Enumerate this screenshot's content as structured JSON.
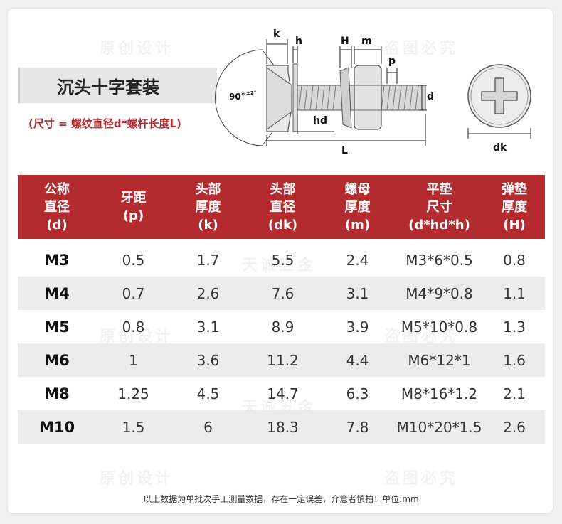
{
  "title": "沉头十字套装",
  "subtitle": "(尺寸 = 螺纹直径d*螺杆长度L)",
  "diagram_labels": {
    "k": "k",
    "h": "h",
    "H": "H",
    "m": "m",
    "p": "p",
    "d": "d",
    "hd": "hd",
    "L": "L",
    "angle": "90°",
    "angle_tol": "±2°",
    "dk": "dk"
  },
  "watermarks": [
    "原创设计",
    "盗图必究",
    "天诚五金"
  ],
  "table": {
    "headers": [
      [
        "公称",
        "直径",
        "(d)"
      ],
      [
        "牙距",
        "(p)"
      ],
      [
        "头部",
        "厚度",
        "(k)"
      ],
      [
        "头部",
        "直径",
        "(dk)"
      ],
      [
        "螺母",
        "厚度",
        "(m)"
      ],
      [
        "平垫",
        "尺寸",
        "(d*hd*h)"
      ],
      [
        "弹垫",
        "厚度",
        "(H)"
      ]
    ],
    "rows": [
      [
        "M3",
        "0.5",
        "1.7",
        "5.5",
        "2.4",
        "M3*6*0.5",
        "0.8"
      ],
      [
        "M4",
        "0.7",
        "2.6",
        "7.6",
        "3.1",
        "M4*9*0.8",
        "1.1"
      ],
      [
        "M5",
        "0.8",
        "3.1",
        "8.9",
        "3.9",
        "M5*10*0.8",
        "1.3"
      ],
      [
        "M6",
        "1",
        "3.6",
        "11.2",
        "4.4",
        "M6*12*1",
        "1.6"
      ],
      [
        "M8",
        "1.25",
        "4.5",
        "14.7",
        "6.3",
        "M8*16*1.2",
        "2.1"
      ],
      [
        "M10",
        "1.5",
        "6",
        "18.3",
        "7.8",
        "M10*20*1.5",
        "2.6"
      ]
    ]
  },
  "footnote": "以上数据为单批次手工测量数据，存在一定误差，介意者慎拍！单位:mm",
  "colors": {
    "header_bg": "#b32b2e",
    "subtitle": "#b3292e",
    "row_alt": "#ececec"
  }
}
